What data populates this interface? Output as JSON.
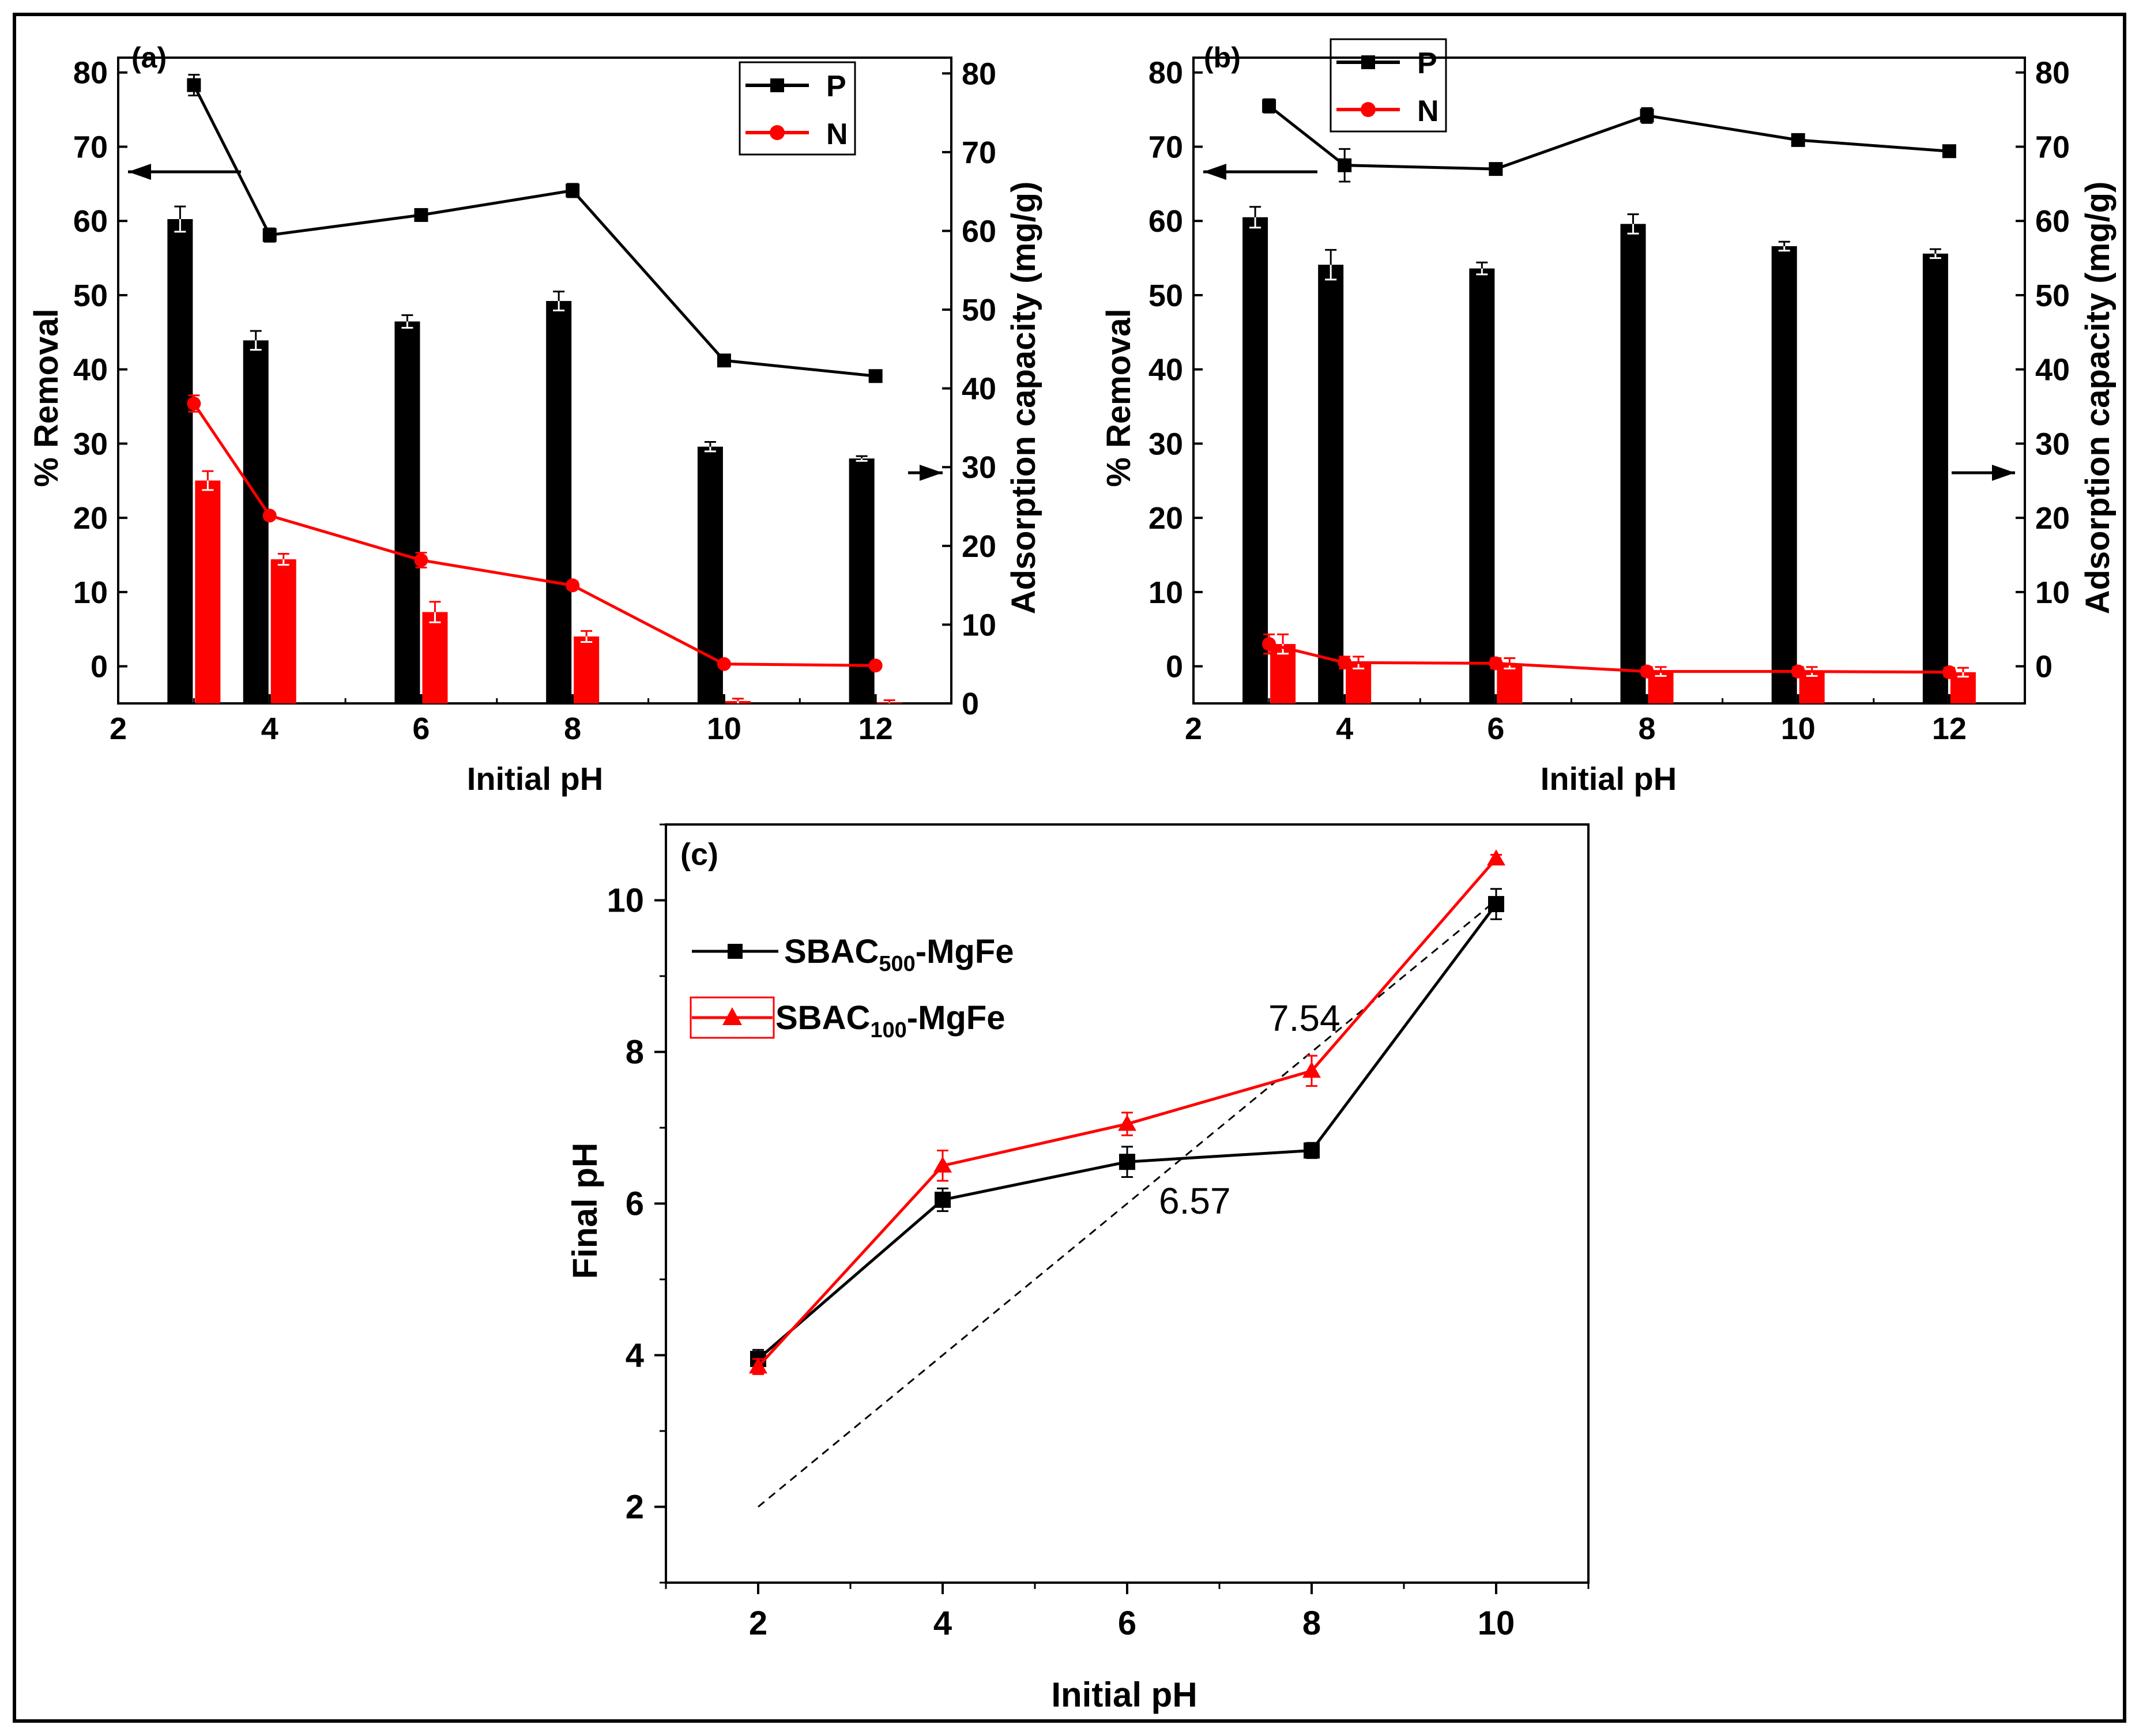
{
  "chart_data": [
    {
      "panel": "a",
      "type": "bar+line",
      "panel_label": "(a)",
      "xlabel": "Initial pH",
      "ylabel_left": "% Removal",
      "ylabel_right": "Adsorption capacity (mg/g)",
      "xlim": [
        2,
        13
      ],
      "ylim_left": [
        -5,
        82
      ],
      "ylim_right": [
        0,
        82
      ],
      "xticks": [
        2,
        4,
        6,
        8,
        10,
        12
      ],
      "yticks_left": [
        0,
        10,
        20,
        30,
        40,
        50,
        60,
        70,
        80
      ],
      "yticks_right": [
        0,
        10,
        20,
        30,
        40,
        50,
        60,
        70,
        80
      ],
      "x": [
        3,
        4,
        6,
        8,
        10,
        12
      ],
      "bars": [
        {
          "name": "P",
          "axis": "right",
          "color": "#000000",
          "values": [
            61.5,
            46.1,
            48.5,
            51.1,
            32.6,
            31.1
          ],
          "errors": [
            1.6,
            1.2,
            0.8,
            1.2,
            0.6,
            0.3
          ]
        },
        {
          "name": "N",
          "axis": "right",
          "color": "#ff0000",
          "values": [
            28.3,
            18.3,
            11.6,
            8.5,
            0.3,
            0.1
          ],
          "errors": [
            1.2,
            0.7,
            1.3,
            0.7,
            0.3,
            0.3
          ]
        }
      ],
      "lines": [
        {
          "name": "P",
          "axis": "left",
          "color": "#000000",
          "marker": "square",
          "values": [
            78.3,
            58.1,
            60.8,
            64.1,
            41.2,
            39.1
          ],
          "errors": [
            1.4,
            0.9,
            0.4,
            0.9,
            0.5,
            0.3
          ]
        },
        {
          "name": "N",
          "axis": "left",
          "color": "#ff0000",
          "marker": "circle",
          "values": [
            35.4,
            20.3,
            14.3,
            10.9,
            0.3,
            0.1
          ],
          "errors": [
            1.1,
            0.4,
            1.0,
            0.5,
            0.3,
            0.3
          ]
        }
      ],
      "legend": [
        {
          "label": "P",
          "color": "#000000",
          "marker": "square"
        },
        {
          "label": "N",
          "color": "#ff0000",
          "marker": "circle"
        }
      ],
      "arrows": [
        "left",
        "right"
      ]
    },
    {
      "panel": "b",
      "type": "bar+line",
      "panel_label": "(b)",
      "xlabel": "Initial pH",
      "ylabel_left": "% Removal",
      "ylabel_right": "Adsorption capacity (mg/g)",
      "xlim": [
        2,
        13
      ],
      "ylim_left": [
        -5,
        82
      ],
      "ylim_right": [
        -5,
        82
      ],
      "xticks": [
        2,
        4,
        6,
        8,
        10,
        12
      ],
      "yticks_left": [
        0,
        10,
        20,
        30,
        40,
        50,
        60,
        70,
        80
      ],
      "yticks_right": [
        0,
        10,
        20,
        30,
        40,
        50,
        60,
        70,
        80
      ],
      "x": [
        3,
        4,
        6,
        8,
        10,
        12
      ],
      "bars": [
        {
          "name": "P",
          "axis": "right",
          "color": "#000000",
          "values": [
            60.5,
            54.1,
            53.6,
            59.6,
            56.6,
            55.6
          ],
          "errors": [
            1.4,
            2.0,
            0.8,
            1.3,
            0.6,
            0.6
          ]
        },
        {
          "name": "N",
          "axis": "right",
          "color": "#ff0000",
          "values": [
            3.0,
            0.5,
            0.4,
            -0.7,
            -0.7,
            -0.8
          ],
          "errors": [
            1.3,
            0.8,
            0.7,
            0.6,
            0.6,
            0.6
          ]
        }
      ],
      "lines": [
        {
          "name": "P",
          "axis": "left",
          "color": "#000000",
          "marker": "square",
          "values": [
            75.5,
            67.5,
            67.0,
            74.2,
            70.9,
            69.4
          ],
          "errors": [
            0.9,
            2.2,
            0.5,
            1.0,
            0.4,
            0.4
          ]
        },
        {
          "name": "N",
          "axis": "left",
          "color": "#ff0000",
          "marker": "circle",
          "values": [
            3.0,
            0.5,
            0.4,
            -0.7,
            -0.7,
            -0.8
          ],
          "errors": [
            1.3,
            0.8,
            0.7,
            0.6,
            0.6,
            0.6
          ]
        }
      ],
      "legend": [
        {
          "label": "P",
          "color": "#000000",
          "marker": "square"
        },
        {
          "label": "N",
          "color": "#ff0000",
          "marker": "circle"
        }
      ],
      "arrows": [
        "left",
        "right"
      ]
    },
    {
      "panel": "c",
      "type": "line",
      "panel_label": "(c)",
      "xlabel": "Initial pH",
      "ylabel": "Final pH",
      "xlim": [
        1,
        11
      ],
      "ylim": [
        1,
        11
      ],
      "xticks": [
        2,
        4,
        6,
        8,
        10
      ],
      "yticks": [
        2,
        4,
        6,
        8,
        10
      ],
      "x": [
        2,
        4,
        6,
        8,
        10
      ],
      "series": [
        {
          "name": "SBAC500-MgFe",
          "label_main": "SBAC",
          "label_sub": "500",
          "label_rest": "-MgFe",
          "color": "#000000",
          "marker": "square",
          "values": [
            3.95,
            6.05,
            6.55,
            6.7,
            9.95
          ],
          "errors": [
            0.12,
            0.15,
            0.2,
            0.1,
            0.2
          ]
        },
        {
          "name": "SBAC100-MgFe",
          "label_main": "SBAC",
          "label_sub": "100",
          "label_rest": "-MgFe",
          "color": "#ff0000",
          "marker": "triangle",
          "values": [
            3.85,
            6.5,
            7.05,
            7.75,
            10.55
          ],
          "errors": [
            0.1,
            0.2,
            0.15,
            0.2,
            0.05
          ]
        }
      ],
      "reference_line": {
        "label": "y = x",
        "from": [
          2,
          2
        ],
        "to": [
          10,
          10
        ],
        "style": "dashed"
      },
      "annotations": [
        {
          "text": "7.54"
        },
        {
          "text": "6.57"
        }
      ]
    }
  ]
}
